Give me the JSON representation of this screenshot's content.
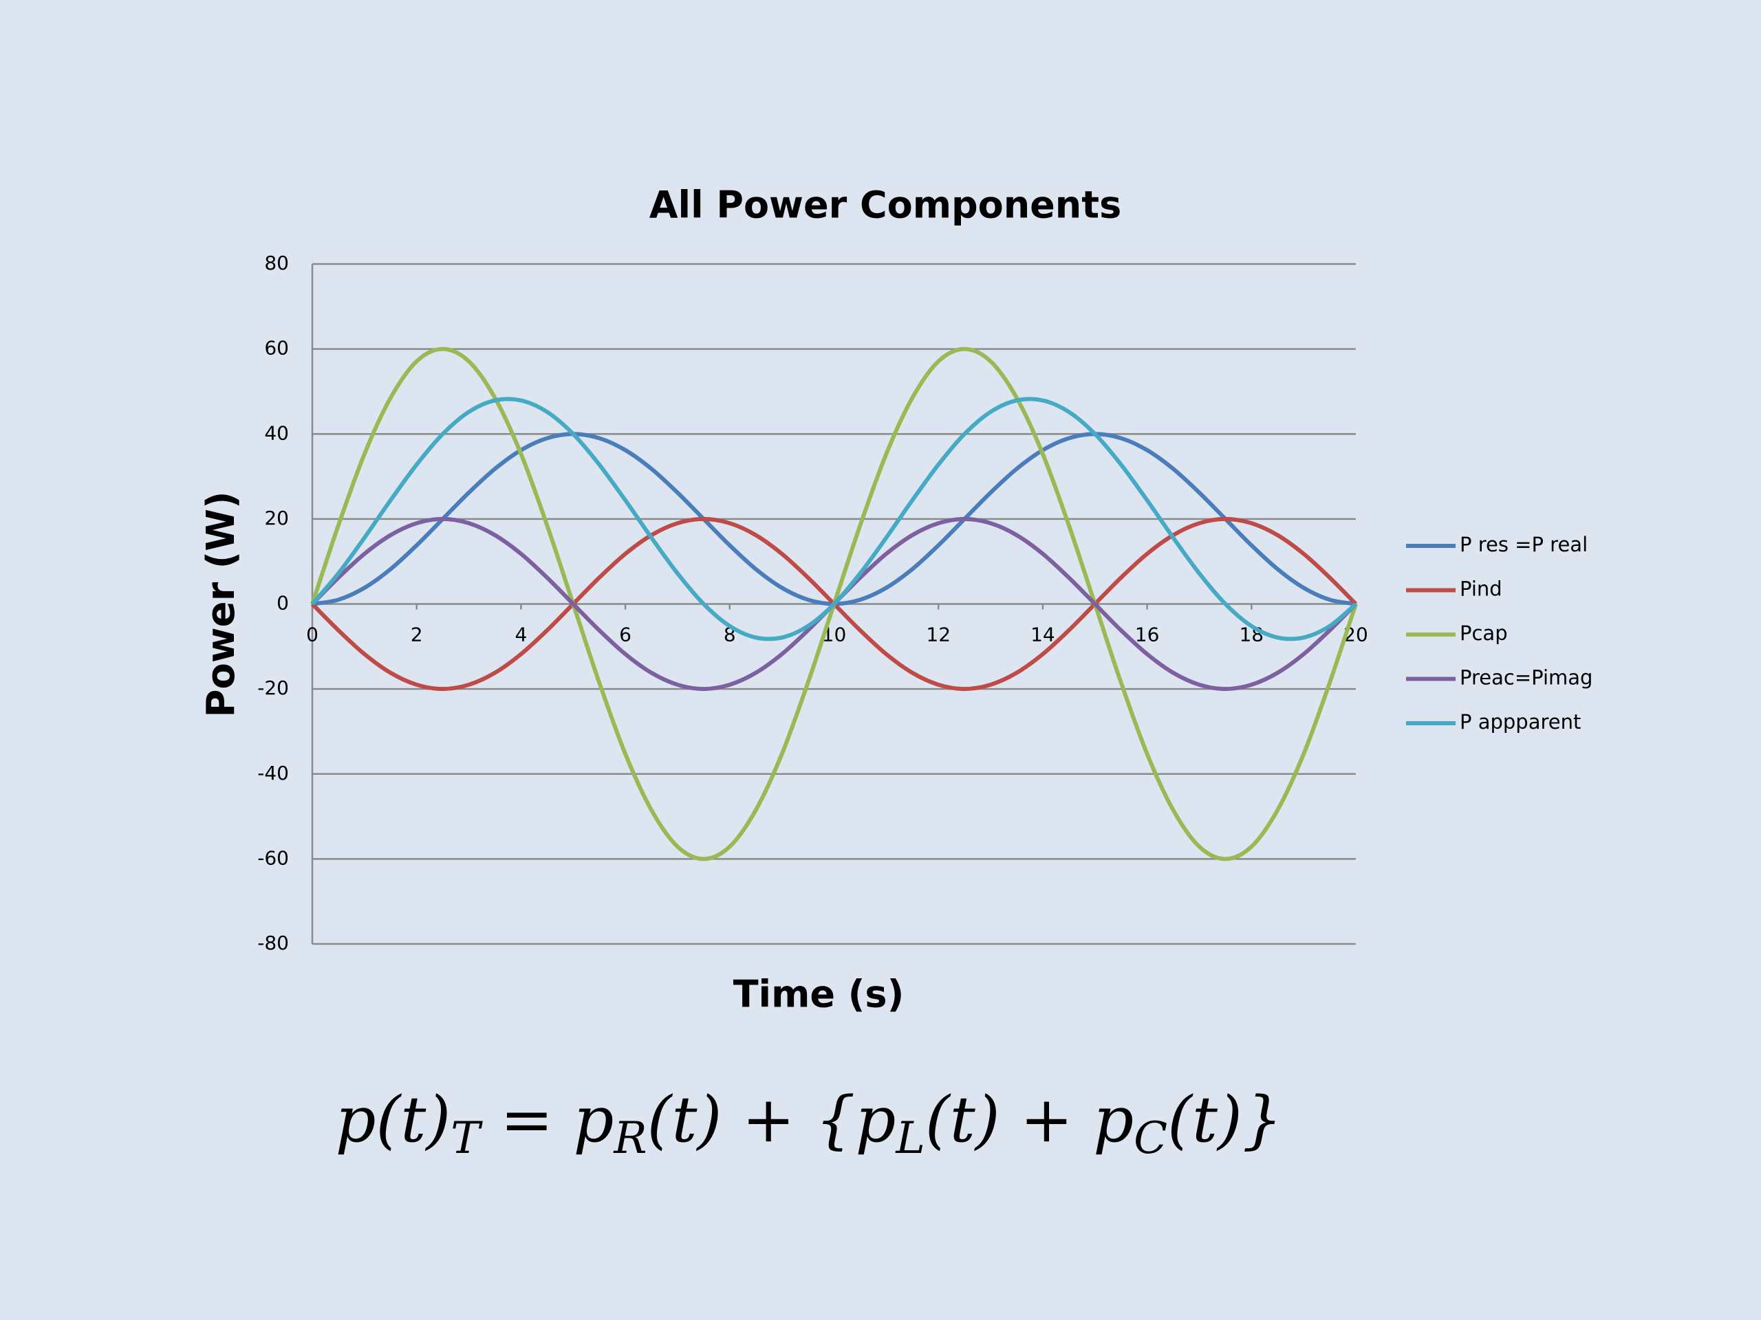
{
  "chart_data": {
    "type": "line",
    "title": "All Power Components",
    "x_label": "Time (s)",
    "y_label": "Power (W)",
    "x": [
      0,
      0.5,
      1,
      1.5,
      2,
      2.5,
      3,
      3.5,
      4,
      4.5,
      5,
      5.5,
      6,
      6.5,
      7,
      7.5,
      8,
      8.5,
      9,
      9.5,
      10,
      10.5,
      11,
      11.5,
      12,
      12.5,
      13,
      13.5,
      14,
      14.5,
      15,
      15.5,
      16,
      16.5,
      17,
      17.5,
      18,
      18.5,
      19,
      19.5,
      20
    ],
    "series": [
      {
        "name": "P res =P real",
        "color": "#4a7ebb",
        "values": [
          0,
          1,
          3.8,
          8.2,
          13.8,
          20,
          26.2,
          31.8,
          36.2,
          39,
          40,
          39,
          36.2,
          31.8,
          26.2,
          20,
          13.8,
          8.2,
          3.8,
          1,
          0,
          1,
          3.8,
          8.2,
          13.8,
          20,
          26.2,
          31.8,
          36.2,
          39,
          40,
          39,
          36.2,
          31.8,
          26.2,
          20,
          13.8,
          8.2,
          3.8,
          1,
          0
        ]
      },
      {
        "name": "Pind",
        "color": "#be4b48",
        "values": [
          0,
          -6.2,
          -11.8,
          -16.2,
          -19,
          -20,
          -19,
          -16.2,
          -11.8,
          -6.2,
          0,
          6.2,
          11.8,
          16.2,
          19,
          20,
          19,
          16.2,
          11.8,
          6.2,
          0,
          -6.2,
          -11.8,
          -16.2,
          -19,
          -20,
          -19,
          -16.2,
          -11.8,
          -6.2,
          0,
          6.2,
          11.8,
          16.2,
          19,
          20,
          19,
          16.2,
          11.8,
          6.2,
          0
        ]
      },
      {
        "name": "Pcap",
        "color": "#98b954",
        "values": [
          0,
          18.5,
          35.3,
          48.5,
          57.1,
          60,
          57.1,
          48.5,
          35.3,
          18.5,
          0,
          -18.5,
          -35.3,
          -48.5,
          -57.1,
          -60,
          -57.1,
          -48.5,
          -35.3,
          -18.5,
          0,
          18.5,
          35.3,
          48.5,
          57.1,
          60,
          57.1,
          48.5,
          35.3,
          18.5,
          0,
          -18.5,
          -35.3,
          -48.5,
          -57.1,
          -60,
          -57.1,
          -48.5,
          -35.3,
          -18.5,
          0
        ]
      },
      {
        "name": "Preac=Pimag",
        "color": "#7d60a0",
        "values": [
          0,
          6.2,
          11.8,
          16.2,
          19,
          20,
          19,
          16.2,
          11.8,
          6.2,
          0,
          -6.2,
          -11.8,
          -16.2,
          -19,
          -20,
          -19,
          -16.2,
          -11.8,
          -6.2,
          0,
          6.2,
          11.8,
          16.2,
          19,
          20,
          19,
          16.2,
          11.8,
          6.2,
          0,
          -6.2,
          -11.8,
          -16.2,
          -19,
          -20,
          -19,
          -16.2,
          -11.8,
          -6.2,
          0
        ]
      },
      {
        "name": "P appparent",
        "color": "#46aac5",
        "values": [
          0,
          7.2,
          15.6,
          24.4,
          32.8,
          40,
          45.2,
          47.9,
          47.9,
          45.2,
          40,
          32.8,
          24.4,
          15.6,
          7.2,
          0,
          -5.2,
          -7.9,
          -7.9,
          -5.2,
          0,
          7.2,
          15.6,
          24.4,
          32.8,
          40,
          45.2,
          47.9,
          47.9,
          45.2,
          40,
          32.8,
          24.4,
          15.6,
          7.2,
          0,
          -5.2,
          -7.9,
          -7.9,
          -5.2,
          0
        ]
      }
    ],
    "xlim": [
      0,
      20
    ],
    "xticks": [
      0,
      2,
      4,
      6,
      8,
      10,
      12,
      14,
      16,
      18,
      20
    ],
    "ylim": [
      -80,
      80
    ],
    "yticks": [
      -80,
      -60,
      -40,
      -20,
      0,
      20,
      40,
      60,
      80
    ],
    "grid": true,
    "legend": "right",
    "annotation": [
      "p(t)",
      "T",
      " = p",
      "R",
      "(t) + {p",
      "L",
      "(t) + p",
      "C",
      "(t)}"
    ]
  }
}
